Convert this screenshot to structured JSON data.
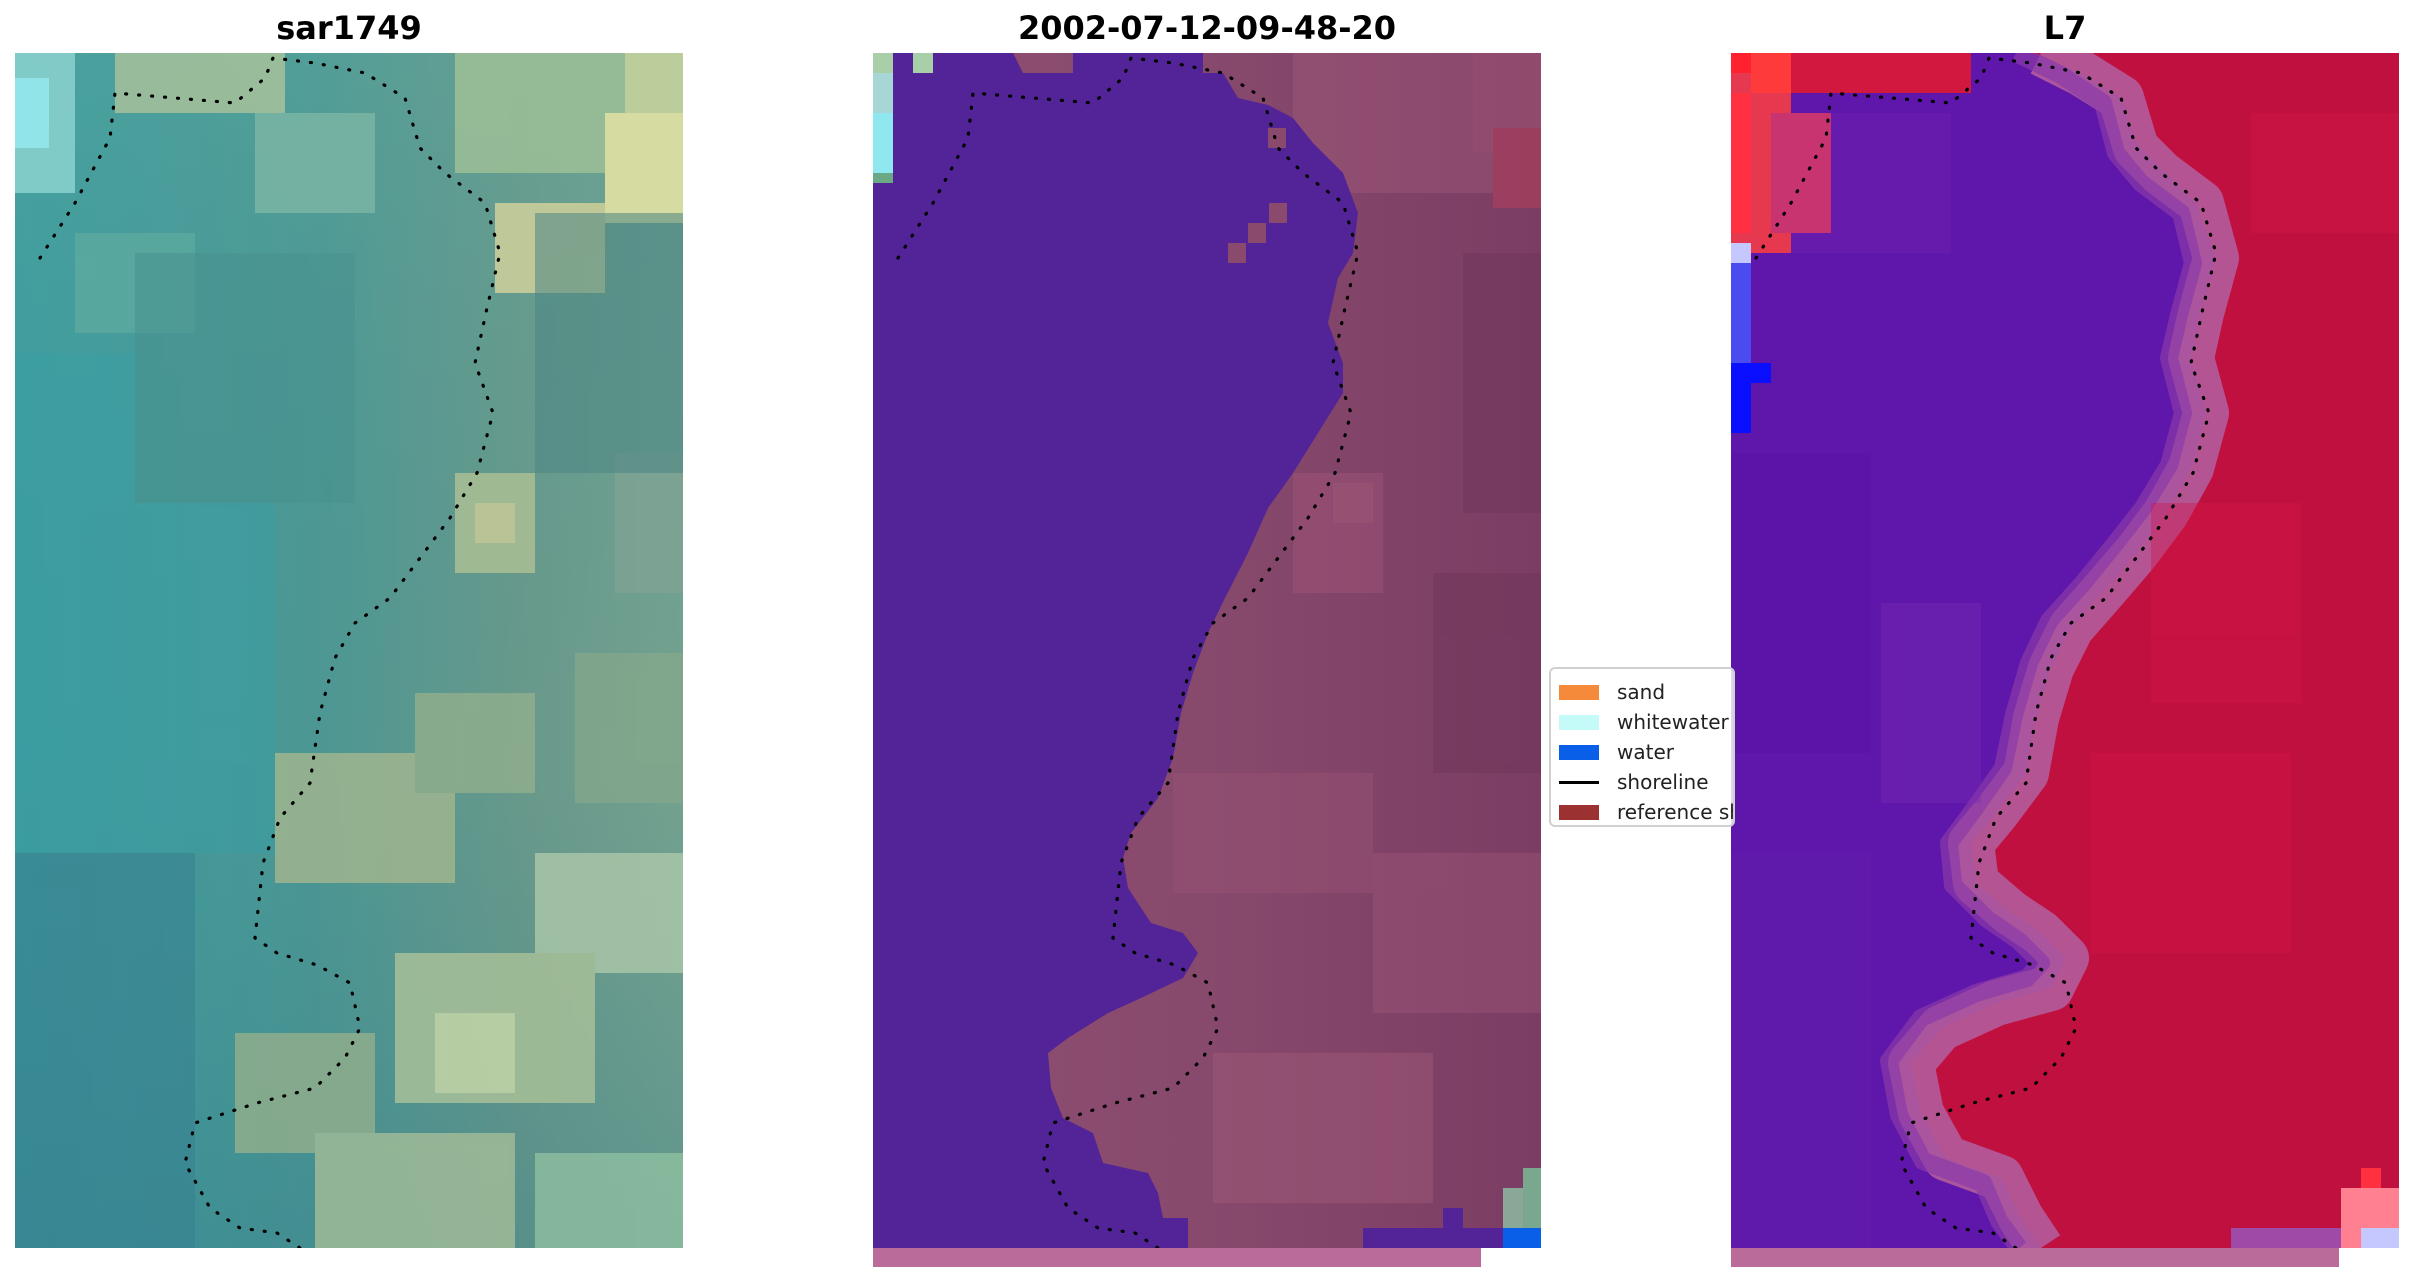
{
  "panels": [
    {
      "id": "left",
      "title": "sar1749"
    },
    {
      "id": "mid",
      "title": "2002-07-12-09-48-20"
    },
    {
      "id": "right",
      "title": "L7"
    }
  ],
  "legend": {
    "items": [
      {
        "label": "sand",
        "kind": "patch",
        "color": "#f58a3a"
      },
      {
        "label": "whitewater",
        "kind": "patch",
        "color": "#c4fbf8"
      },
      {
        "label": "water",
        "kind": "patch",
        "color": "#0a5fe8"
      },
      {
        "label": "shoreline",
        "kind": "line",
        "color": "#000000"
      },
      {
        "label": "reference shoreline",
        "kind": "patch",
        "color": "#9b3131"
      }
    ]
  },
  "colors": {
    "water_class": "#522498",
    "land_class_mid": "#8a4a6d",
    "strip": "#bb6b9a",
    "shoreline": "#000000"
  }
}
